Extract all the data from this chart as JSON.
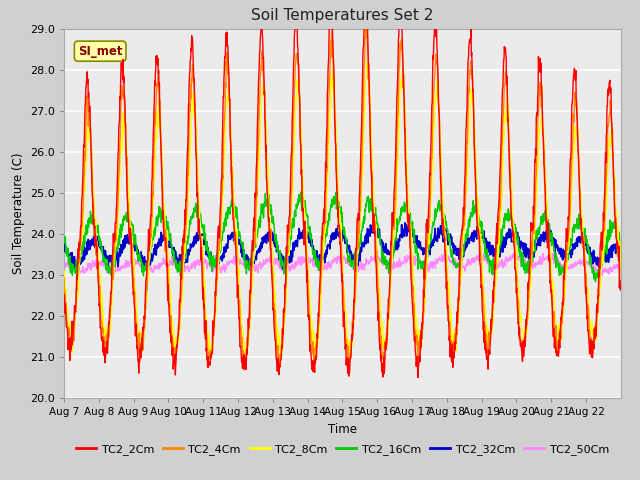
{
  "title": "Soil Temperatures Set 2",
  "xlabel": "Time",
  "ylabel": "Soil Temperature (C)",
  "ylim": [
    20.0,
    29.0
  ],
  "yticks": [
    20.0,
    21.0,
    22.0,
    23.0,
    24.0,
    25.0,
    26.0,
    27.0,
    28.0,
    29.0
  ],
  "xtick_labels": [
    "Aug 7",
    "Aug 8",
    "Aug 9",
    "Aug 10",
    "Aug 11",
    "Aug 12",
    "Aug 13",
    "Aug 14",
    "Aug 15",
    "Aug 16",
    "Aug 17",
    "Aug 18",
    "Aug 19",
    "Aug 20",
    "Aug 21",
    "Aug 22"
  ],
  "series_colors": {
    "TC2_2Cm": "#ff0000",
    "TC2_4Cm": "#ff8800",
    "TC2_8Cm": "#ffff00",
    "TC2_16Cm": "#00cc00",
    "TC2_32Cm": "#0000cc",
    "TC2_50Cm": "#ff88ff"
  },
  "annotation_text": "SI_met",
  "annotation_color": "#880000",
  "annotation_bg": "#ffffaa",
  "annotation_border": "#888800",
  "fig_bg": "#d0d0d0",
  "plot_bg": "#ebebeb",
  "grid_color": "#ffffff",
  "n_days": 16,
  "pts_per_day": 96
}
